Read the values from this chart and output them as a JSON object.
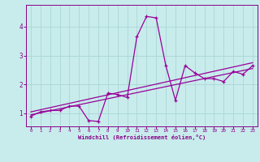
{
  "title": "",
  "xlabel": "Windchill (Refroidissement éolien,°C)",
  "ylabel": "",
  "bg_color": "#c8ecec",
  "line_color": "#990099",
  "grid_color": "#b0d8d8",
  "axis_color": "#880088",
  "xlim": [
    -0.5,
    23.5
  ],
  "ylim": [
    0.55,
    4.75
  ],
  "xticks": [
    0,
    1,
    2,
    3,
    4,
    5,
    6,
    7,
    8,
    9,
    10,
    11,
    12,
    13,
    14,
    15,
    16,
    17,
    18,
    19,
    20,
    21,
    22,
    23
  ],
  "yticks": [
    1,
    2,
    3,
    4
  ],
  "curve_x": [
    0,
    1,
    2,
    3,
    4,
    5,
    6,
    7,
    8,
    9,
    10,
    11,
    12,
    13,
    14,
    15,
    16,
    17,
    18,
    19,
    20,
    21,
    22,
    23
  ],
  "curve_y": [
    0.9,
    1.05,
    1.1,
    1.1,
    1.25,
    1.25,
    0.75,
    0.72,
    1.7,
    1.65,
    1.55,
    3.65,
    4.35,
    4.3,
    2.65,
    1.45,
    2.65,
    2.4,
    2.2,
    2.2,
    2.1,
    2.45,
    2.35,
    2.65
  ],
  "trend1_x": [
    0,
    23
  ],
  "trend1_y": [
    0.95,
    2.55
  ],
  "trend2_x": [
    0,
    23
  ],
  "trend2_y": [
    1.05,
    2.75
  ]
}
